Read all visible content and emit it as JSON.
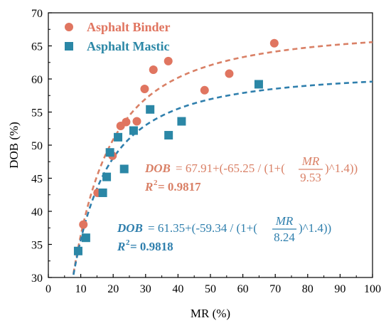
{
  "chart_data": {
    "type": "scatter",
    "xlabel": "MR (%)",
    "ylabel": "DOB (%)",
    "xlim": [
      0,
      100
    ],
    "ylim": [
      30,
      70
    ],
    "x_ticks": [
      "0",
      "10",
      "20",
      "30",
      "40",
      "50",
      "60",
      "70",
      "80",
      "90",
      "100"
    ],
    "y_ticks": [
      "30",
      "35",
      "40",
      "45",
      "50",
      "55",
      "60",
      "65",
      "70"
    ],
    "grid": false,
    "legend_position": "top-left",
    "series": [
      {
        "name": "Asphalt Binder",
        "marker": "circle",
        "color": "#e07560",
        "fit_color": "#d98066",
        "fit": {
          "a": 67.91,
          "b": -65.25,
          "x0": 9.53,
          "p": 1.4
        },
        "points": [
          {
            "x": 10.8,
            "y": 38.0
          },
          {
            "x": 15.2,
            "y": 42.8
          },
          {
            "x": 19.8,
            "y": 48.4
          },
          {
            "x": 22.3,
            "y": 52.9
          },
          {
            "x": 24.0,
            "y": 53.5
          },
          {
            "x": 27.3,
            "y": 53.6
          },
          {
            "x": 29.7,
            "y": 58.5
          },
          {
            "x": 32.4,
            "y": 61.4
          },
          {
            "x": 37.0,
            "y": 62.7
          },
          {
            "x": 48.2,
            "y": 58.3
          },
          {
            "x": 55.8,
            "y": 60.8
          },
          {
            "x": 69.7,
            "y": 65.4
          }
        ]
      },
      {
        "name": "Asphalt Mastic",
        "marker": "square",
        "color": "#2b87a6",
        "fit_color": "#2f7fad",
        "fit": {
          "a": 61.35,
          "b": -59.34,
          "x0": 8.24,
          "p": 1.4
        },
        "points": [
          {
            "x": 9.2,
            "y": 34.0
          },
          {
            "x": 11.6,
            "y": 36.0
          },
          {
            "x": 16.8,
            "y": 42.8
          },
          {
            "x": 18.0,
            "y": 45.2
          },
          {
            "x": 19.0,
            "y": 48.9
          },
          {
            "x": 21.5,
            "y": 51.2
          },
          {
            "x": 23.4,
            "y": 46.4
          },
          {
            "x": 26.3,
            "y": 52.2
          },
          {
            "x": 31.4,
            "y": 55.4
          },
          {
            "x": 37.1,
            "y": 51.5
          },
          {
            "x": 41.1,
            "y": 53.6
          },
          {
            "x": 64.9,
            "y": 59.2
          }
        ]
      }
    ],
    "annotations": {
      "binder_eq": {
        "lhs": "DOB",
        "head": " = 67.91+(-65.25 / (1+(",
        "num": "MR",
        "den": "9.53",
        "tail": ")^1.4))",
        "r2_label": "R",
        "r2_sup": "2",
        "r2_value": " = 0.9817"
      },
      "mastic_eq": {
        "lhs": "DOB",
        "head": " = 61.35+(-59.34 / (1+(",
        "num": "MR",
        "den": "8.24",
        "tail": ")^1.4))",
        "r2_label": "R",
        "r2_sup": "2",
        "r2_value": " = 0.9818"
      }
    }
  }
}
